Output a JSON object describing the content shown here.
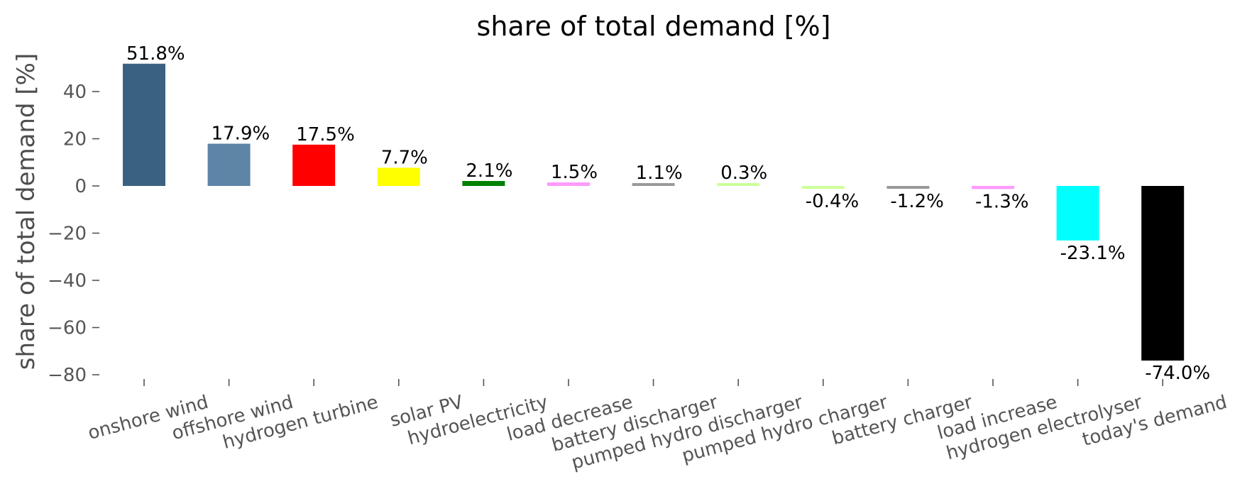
{
  "chart_data": {
    "type": "bar",
    "title": "share of total demand [%]",
    "xlabel": "",
    "ylabel": "share of total demand [%]",
    "ylim": [
      -80,
      55
    ],
    "yticks": [
      40,
      20,
      0,
      -20,
      -40,
      -60,
      -80
    ],
    "ytick_labels": [
      "40",
      "20",
      "0",
      "−20",
      "−40",
      "−60",
      "−80"
    ],
    "grid": false,
    "categories": [
      "onshore wind",
      "offshore wind",
      "hydrogen turbine",
      "solar PV",
      "hydroelectricity",
      "load decrease",
      "battery discharger",
      "pumped hydro discharger",
      "pumped hydro charger",
      "battery charger",
      "load increase",
      "hydrogen electrolyser",
      "today's demand"
    ],
    "values": [
      51.8,
      17.9,
      17.5,
      7.7,
      2.1,
      1.5,
      1.1,
      0.3,
      -0.4,
      -1.2,
      -1.3,
      -23.1,
      -74.0
    ],
    "value_labels": [
      "51.8%",
      "17.9%",
      "17.5%",
      "7.7%",
      "2.1%",
      "1.5%",
      "1.1%",
      "0.3%",
      "-0.4%",
      "-1.2%",
      "-1.3%",
      "-23.1%",
      "-74.0%"
    ],
    "colors": [
      "#3b6182",
      "#5e84a6",
      "#ff0000",
      "#ffff00",
      "#008000",
      "#ff99ff",
      "#999999",
      "#ccff99",
      "#ccff99",
      "#999999",
      "#ff99ff",
      "#00ffff",
      "#000000"
    ]
  }
}
